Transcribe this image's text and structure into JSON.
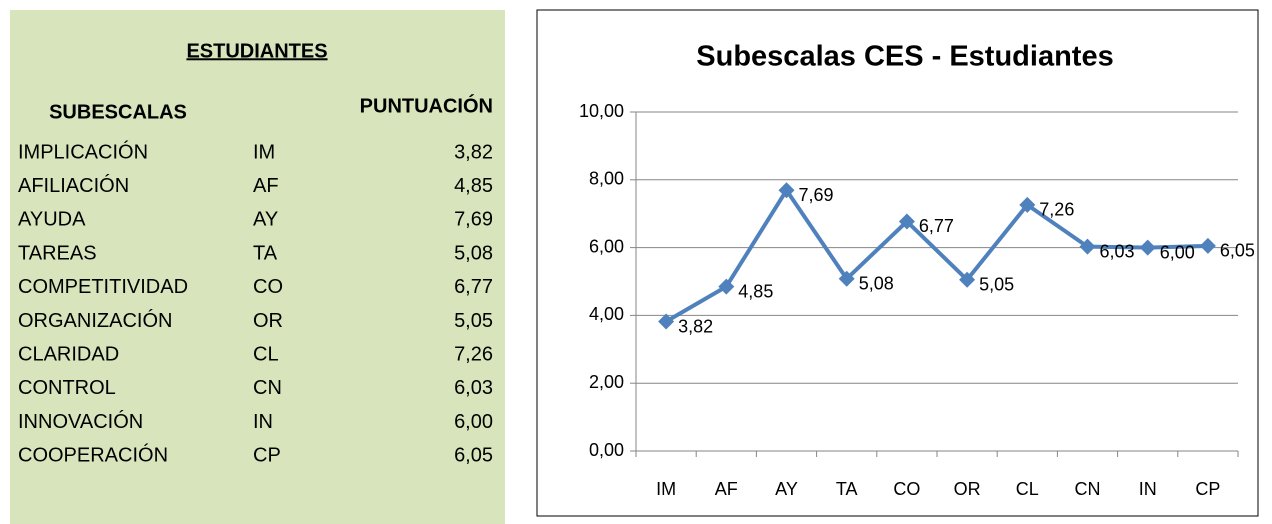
{
  "table": {
    "title": "ESTUDIANTES",
    "headers": [
      "SUBESCALAS",
      "PUNTUACIÓN"
    ],
    "rows": [
      [
        "IMPLICACIÓN",
        "IM",
        "3,82"
      ],
      [
        "AFILIACIÓN",
        "AF",
        "4,85"
      ],
      [
        "AYUDA",
        "AY",
        "7,69"
      ],
      [
        "TAREAS",
        "TA",
        "5,08"
      ],
      [
        "COMPETITIVIDAD",
        "CO",
        "6,77"
      ],
      [
        "ORGANIZACIÓN",
        "OR",
        "5,05"
      ],
      [
        "CLARIDAD",
        "CL",
        "7,26"
      ],
      [
        "CONTROL",
        "CN",
        "6,03"
      ],
      [
        "INNOVACIÓN",
        "IN",
        "6,00"
      ],
      [
        "COOPERACIÓN",
        "CP",
        "6,05"
      ]
    ]
  },
  "chart_data": {
    "type": "line",
    "title": "Subescalas CES - Estudiantes",
    "categories": [
      "IM",
      "AF",
      "AY",
      "TA",
      "CO",
      "OR",
      "CL",
      "CN",
      "IN",
      "CP"
    ],
    "values": [
      3.82,
      4.85,
      7.69,
      5.08,
      6.77,
      5.05,
      7.26,
      6.03,
      6.0,
      6.05
    ],
    "value_labels": [
      "3,82",
      "4,85",
      "7,69",
      "5,08",
      "6,77",
      "5,05",
      "7,26",
      "6,03",
      "6,00",
      "6,05"
    ],
    "color": "#4f81bd",
    "ylim": [
      0,
      10
    ],
    "yticks": [
      {
        "value": 0,
        "label": "0,00"
      },
      {
        "value": 2,
        "label": "2,00"
      },
      {
        "value": 4,
        "label": "4,00"
      },
      {
        "value": 6,
        "label": "6,00"
      },
      {
        "value": 8,
        "label": "8,00"
      },
      {
        "value": 10,
        "label": "10,00"
      }
    ],
    "grid": true
  }
}
